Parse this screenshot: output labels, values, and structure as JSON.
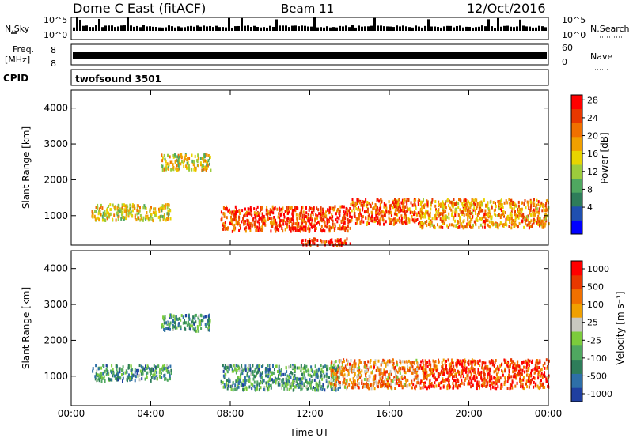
{
  "header": {
    "station": "Dome C East (fitACF)",
    "beam": "Beam 11",
    "date": "12/Oct/2016"
  },
  "top_panels": {
    "nsky_label": "N.Sky",
    "nsky_ticks": [
      "10^5",
      "10^0"
    ],
    "freq_label_line1": "Freq.",
    "freq_label_line2": "[MHz]",
    "freq_ticks": [
      "8",
      "8"
    ],
    "nsearch_label": "N.Search",
    "nsearch_ticks": [
      "10^5",
      "10^0"
    ],
    "nave_label": "Nave",
    "nave_ticks": [
      "60",
      "0"
    ],
    "cpid_label": "CPID",
    "cpid_value": "twofsound 3501"
  },
  "chart_data": [
    {
      "type": "heatmap",
      "title": "",
      "xlabel": "Time UT",
      "ylabel": "Slant Range [km]",
      "x_ticks": [
        "00:00",
        "04:00",
        "08:00",
        "12:00",
        "16:00",
        "20:00",
        "00:00"
      ],
      "y_ticks": [
        1000,
        2000,
        3000,
        4000
      ],
      "ylim": [
        180,
        4500
      ],
      "colorbar": {
        "label": "Power [dB]",
        "ticks": [
          "4",
          "8",
          "12",
          "16",
          "20",
          "24",
          "28"
        ],
        "colors": [
          "#0000ff",
          "#1f4fb0",
          "#2e7d5a",
          "#4fa860",
          "#9ccc3c",
          "#e8d400",
          "#f0a000",
          "#f07000",
          "#e83800",
          "#ff0000"
        ]
      },
      "echo_regions": [
        {
          "t_start": 1.0,
          "t_end": 5.0,
          "range_km": [
            900,
            1350
          ],
          "level": 0.55
        },
        {
          "t_start": 4.5,
          "t_end": 7.0,
          "range_km": [
            2300,
            2750
          ],
          "level": 0.55
        },
        {
          "t_start": 7.5,
          "t_end": 14.0,
          "range_km": [
            600,
            1300
          ],
          "level": 0.85
        },
        {
          "t_start": 11.5,
          "t_end": 14.0,
          "range_km": [
            200,
            400
          ],
          "level": 0.9
        },
        {
          "t_start": 14.0,
          "t_end": 17.5,
          "range_km": [
            800,
            1500
          ],
          "level": 0.8
        },
        {
          "t_start": 17.5,
          "t_end": 24.0,
          "range_km": [
            700,
            1500
          ],
          "level": 0.7
        }
      ]
    },
    {
      "type": "heatmap",
      "title": "",
      "xlabel": "Time UT",
      "ylabel": "Slant Range [km]",
      "x_ticks": [
        "00:00",
        "04:00",
        "08:00",
        "12:00",
        "16:00",
        "20:00",
        "00:00"
      ],
      "y_ticks": [
        1000,
        2000,
        3000,
        4000
      ],
      "ylim": [
        180,
        4500
      ],
      "colorbar": {
        "label": "Velocity [m s⁻¹]",
        "ticks": [
          "1000",
          "500",
          "100",
          "25",
          "-25",
          "-100",
          "-500",
          "-1000"
        ],
        "colors": [
          "#1f3fa0",
          "#2e6fa8",
          "#2e7d5a",
          "#4fa860",
          "#7ccc3c",
          "#c8c8c0",
          "#f0a000",
          "#f07000",
          "#e83800",
          "#ff0000"
        ]
      },
      "echo_regions": [
        {
          "t_start": 1.0,
          "t_end": 5.0,
          "range_km": [
            900,
            1350
          ],
          "level": "-100"
        },
        {
          "t_start": 4.5,
          "t_end": 7.0,
          "range_km": [
            2300,
            2750
          ],
          "level": "-100"
        },
        {
          "t_start": 7.5,
          "t_end": 13.5,
          "range_km": [
            650,
            1350
          ],
          "level": "-100"
        },
        {
          "t_start": 13.0,
          "t_end": 17.5,
          "range_km": [
            700,
            1500
          ],
          "level": "100"
        },
        {
          "t_start": 17.5,
          "t_end": 24.0,
          "range_km": [
            700,
            1500
          ],
          "level": "500"
        }
      ]
    }
  ]
}
